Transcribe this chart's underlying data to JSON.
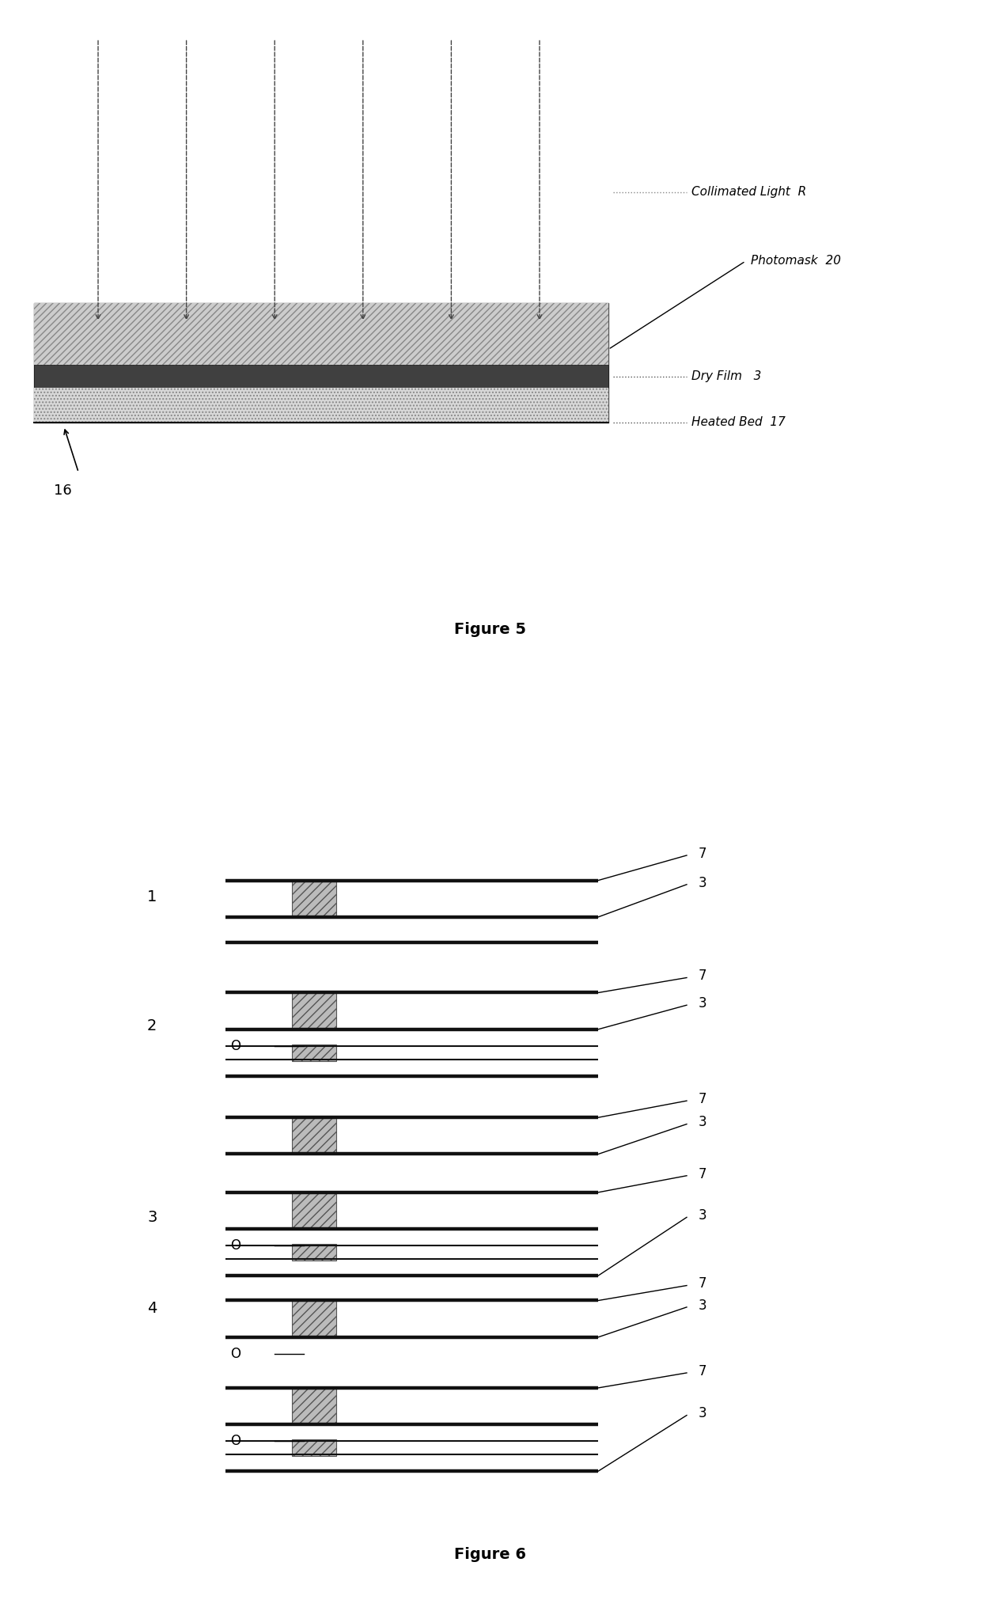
{
  "fig5": {
    "title": "Figure 5",
    "label_collimated": "Collimated Light  R",
    "label_photomask": "Photomask  20",
    "label_dryfilm": "Dry Film   3",
    "label_heatedbed": "Heated Bed  17",
    "label_16": "16"
  },
  "fig6": {
    "title": "Figure 6"
  }
}
